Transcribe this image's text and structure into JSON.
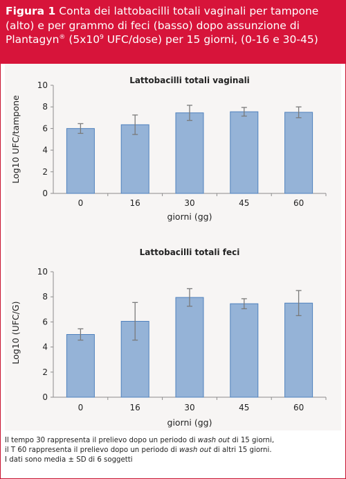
{
  "header": {
    "figure_label": "Figura 1",
    "caption_pre": "Conta dei lattobacilli totali vaginali per tampone (alto) e per grammo di feci (basso) dopo assunzione di Plantagyn",
    "caption_reg": "®",
    "caption_mid": " (5x10",
    "caption_exp": "9",
    "caption_post": " UFC/dose) per 15 giorni, (0-16 e 30-45)"
  },
  "chart_data": [
    {
      "type": "bar",
      "title": "Lattobacilli totali vaginali",
      "xlabel": "giorni (gg)",
      "ylabel": "Log10 UFC/tampone",
      "categories": [
        "0",
        "16",
        "30",
        "45",
        "60"
      ],
      "values": [
        6.0,
        6.35,
        7.45,
        7.55,
        7.5
      ],
      "errors": [
        0.45,
        0.9,
        0.7,
        0.4,
        0.5
      ],
      "ylim": [
        0,
        10
      ],
      "yticks": [
        "0",
        "2",
        "4",
        "6",
        "8",
        "10"
      ],
      "grid": false,
      "bar_color": "#95b3d7"
    },
    {
      "type": "bar",
      "title": "Lattobacilli totali feci",
      "xlabel": "giorni (gg)",
      "ylabel": "Log10 (UFC/G)",
      "categories": [
        "0",
        "16",
        "30",
        "45",
        "60"
      ],
      "values": [
        5.0,
        6.05,
        7.95,
        7.45,
        7.5
      ],
      "errors": [
        0.45,
        1.5,
        0.7,
        0.4,
        1.0
      ],
      "ylim": [
        0,
        10
      ],
      "yticks": [
        "0",
        "2",
        "4",
        "6",
        "8",
        "10"
      ],
      "grid": false,
      "bar_color": "#95b3d7"
    }
  ],
  "footer": {
    "line1_pre": "Il tempo 30 rappresenta il prelievo dopo un periodo di ",
    "line1_em": "wash out",
    "line1_post": " di 15 giorni,",
    "line2_pre": "il T 60 rappresenta il prelievo dopo un periodo di ",
    "line2_em": "wash out",
    "line2_post": " di altri 15 giorni.",
    "line3": "I dati sono media ± SD di 6 soggetti"
  }
}
